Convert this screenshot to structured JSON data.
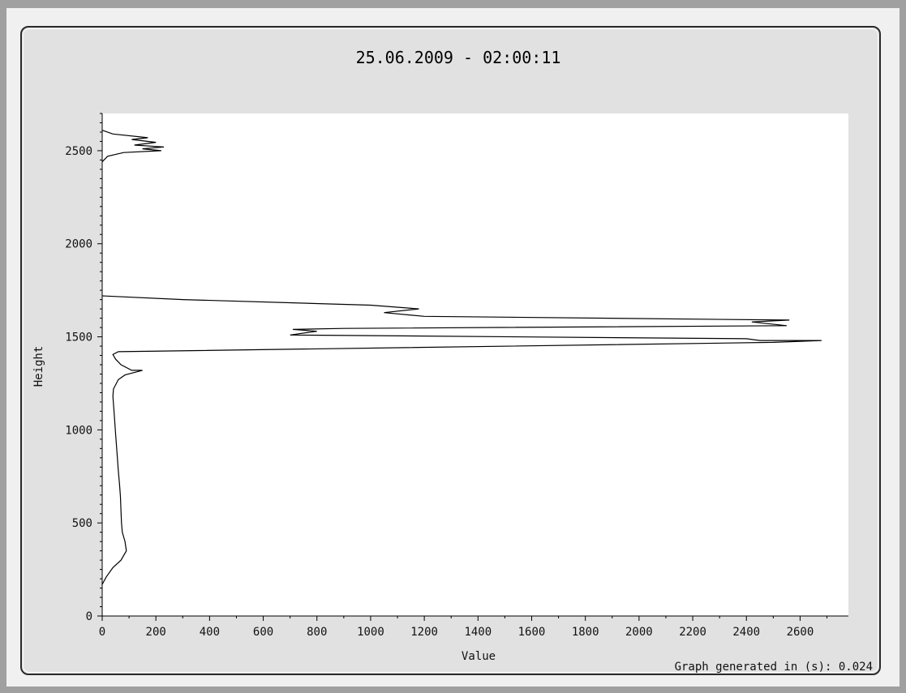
{
  "chart_data": {
    "type": "line",
    "title": "25.06.2009 - 02:00:11",
    "xlabel": "Value",
    "ylabel": "Height",
    "xlim": [
      0,
      2780
    ],
    "ylim": [
      0,
      2700
    ],
    "xticks": [
      0,
      200,
      400,
      600,
      800,
      1000,
      1200,
      1400,
      1600,
      1800,
      2000,
      2200,
      2400,
      2600
    ],
    "yticks": [
      0,
      500,
      1000,
      1500,
      2000,
      2500
    ],
    "grid": false,
    "series": [
      {
        "points": [
          [
            0,
            170
          ],
          [
            15,
            210
          ],
          [
            40,
            260
          ],
          [
            70,
            300
          ],
          [
            90,
            350
          ],
          [
            85,
            400
          ],
          [
            75,
            450
          ],
          [
            72,
            500
          ],
          [
            70,
            560
          ],
          [
            68,
            640
          ],
          [
            65,
            700
          ],
          [
            60,
            780
          ],
          [
            55,
            880
          ],
          [
            50,
            980
          ],
          [
            45,
            1080
          ],
          [
            40,
            1180
          ],
          [
            42,
            1220
          ],
          [
            60,
            1270
          ],
          [
            85,
            1295
          ],
          [
            150,
            1320
          ],
          [
            110,
            1320
          ],
          [
            70,
            1350
          ],
          [
            50,
            1380
          ],
          [
            40,
            1405
          ],
          [
            60,
            1420
          ],
          [
            2500,
            1470
          ],
          [
            2680,
            1480
          ],
          [
            2450,
            1480
          ],
          [
            2400,
            1490
          ],
          [
            700,
            1510
          ],
          [
            800,
            1530
          ],
          [
            710,
            1540
          ],
          [
            900,
            1545
          ],
          [
            2550,
            1560
          ],
          [
            2420,
            1580
          ],
          [
            2560,
            1590
          ],
          [
            1200,
            1610
          ],
          [
            1050,
            1630
          ],
          [
            1180,
            1650
          ],
          [
            1000,
            1670
          ],
          [
            300,
            1700
          ],
          [
            0,
            1720
          ]
        ]
      },
      {
        "points": [
          [
            0,
            2440
          ],
          [
            20,
            2470
          ],
          [
            80,
            2490
          ],
          [
            220,
            2500
          ],
          [
            150,
            2510
          ],
          [
            230,
            2520
          ],
          [
            120,
            2530
          ],
          [
            200,
            2545
          ],
          [
            110,
            2560
          ],
          [
            170,
            2570
          ],
          [
            40,
            2590
          ],
          [
            0,
            2610
          ]
        ]
      }
    ]
  },
  "footer": {
    "generated_text": "Graph generated in (s): 0.024"
  }
}
